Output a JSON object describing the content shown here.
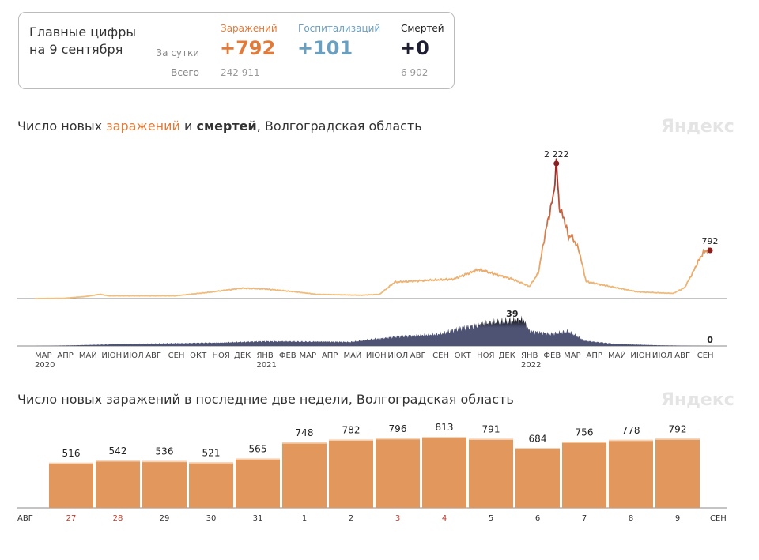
{
  "summary": {
    "title_line1": "Главные цифры",
    "title_line2": "на 9 сентября",
    "row_day_label": "За сутки",
    "row_total_label": "Всего",
    "columns": [
      {
        "label": "Заражений",
        "day": "+792",
        "total": "242 911",
        "color": "#e07b3c"
      },
      {
        "label": "Госпитализаций",
        "day": "+101",
        "total": "",
        "color": "#6a9fc0"
      },
      {
        "label": "Смертей",
        "day": "+0",
        "total": "6 902",
        "color": "#1f1f33"
      }
    ]
  },
  "logo": "Яндекс",
  "chart_data": [
    {
      "type": "line",
      "title_parts": [
        "Число новых ",
        "заражений",
        " и ",
        "смертей",
        ", Волгоградская область"
      ],
      "colors": {
        "infections_low": "#f0c080",
        "infections_high": "#9a1f1f",
        "deaths": "#4e5273",
        "deaths_peak": "#1a1a22"
      },
      "x_ticks": [
        "МАР",
        "АПР",
        "МАЙ",
        "ИЮН",
        "ИЮЛ",
        "АВГ",
        "СЕН",
        "ОКТ",
        "НОЯ",
        "ДЕК",
        "ЯНВ",
        "ФЕВ",
        "МАР",
        "АПР",
        "МАЙ",
        "ИЮН",
        "ИЮЛ",
        "АВГ",
        "СЕН",
        "ОКТ",
        "НОЯ",
        "ДЕК",
        "ЯНВ",
        "ФЕВ",
        "МАР",
        "АПР",
        "МАЙ",
        "ИЮН",
        "ИЮЛ",
        "АВГ",
        "СЕН"
      ],
      "year_ticks": [
        {
          "month_index": 0,
          "label": "2020"
        },
        {
          "month_index": 10,
          "label": "2021"
        },
        {
          "month_index": 22,
          "label": "2022"
        }
      ],
      "series": [
        {
          "key": "infections",
          "points": [
            [
              "2020-02-20",
              0
            ],
            [
              "2020-04-01",
              5
            ],
            [
              "2020-05-01",
              35
            ],
            [
              "2020-05-20",
              70
            ],
            [
              "2020-06-01",
              45
            ],
            [
              "2020-09-01",
              45
            ],
            [
              "2020-10-15",
              100
            ],
            [
              "2020-12-01",
              170
            ],
            [
              "2021-01-01",
              160
            ],
            [
              "2021-02-15",
              110
            ],
            [
              "2021-03-15",
              70
            ],
            [
              "2021-05-15",
              55
            ],
            [
              "2021-06-10",
              70
            ],
            [
              "2021-07-01",
              270
            ],
            [
              "2021-08-15",
              300
            ],
            [
              "2021-09-20",
              320
            ],
            [
              "2021-10-25",
              480
            ],
            [
              "2021-12-10",
              320
            ],
            [
              "2022-01-03",
              200
            ],
            [
              "2022-01-15",
              420
            ],
            [
              "2022-01-25",
              1100
            ],
            [
              "2022-02-05",
              1700
            ],
            [
              "2022-02-09",
              2222
            ],
            [
              "2022-02-13",
              1500
            ],
            [
              "2022-02-20",
              1300
            ],
            [
              "2022-02-26",
              1000
            ],
            [
              "2022-03-01",
              1050
            ],
            [
              "2022-03-12",
              800
            ],
            [
              "2022-03-22",
              280
            ],
            [
              "2022-04-15",
              220
            ],
            [
              "2022-06-01",
              110
            ],
            [
              "2022-07-20",
              85
            ],
            [
              "2022-08-05",
              180
            ],
            [
              "2022-08-15",
              400
            ],
            [
              "2022-08-25",
              640
            ],
            [
              "2022-09-01",
              780
            ],
            [
              "2022-09-09",
              792
            ]
          ],
          "annotations": [
            {
              "date": "2022-02-09",
              "value": 2222,
              "label": "2 222"
            },
            {
              "date": "2022-09-09",
              "value": 792,
              "label": "792"
            }
          ]
        },
        {
          "key": "deaths",
          "points": [
            [
              "2020-02-20",
              0
            ],
            [
              "2020-04-15",
              1
            ],
            [
              "2020-07-01",
              3
            ],
            [
              "2020-11-01",
              5
            ],
            [
              "2021-01-01",
              7
            ],
            [
              "2021-05-01",
              6
            ],
            [
              "2021-07-01",
              14
            ],
            [
              "2021-09-01",
              18
            ],
            [
              "2021-10-01",
              27
            ],
            [
              "2021-11-01",
              33
            ],
            [
              "2021-12-01",
              37
            ],
            [
              "2021-12-25",
              39
            ],
            [
              "2022-01-03",
              22
            ],
            [
              "2022-02-01",
              18
            ],
            [
              "2022-02-25",
              22
            ],
            [
              "2022-03-20",
              8
            ],
            [
              "2022-05-01",
              3
            ],
            [
              "2022-07-01",
              1
            ],
            [
              "2022-09-09",
              0
            ]
          ],
          "annotations": [
            {
              "date": "2021-12-10",
              "value": 39,
              "label": "39"
            },
            {
              "date": "2022-09-09",
              "value": 0,
              "label": "0"
            }
          ]
        }
      ]
    },
    {
      "type": "bar",
      "title": "Число новых заражений в последние две недели, Волгоградская область",
      "color": "#e2975c",
      "weekend_color": "#c0392b",
      "x_start_label": "АВГ",
      "x_end_label": "СЕН",
      "categories": [
        "27",
        "28",
        "29",
        "30",
        "31",
        "1",
        "2",
        "3",
        "4",
        "5",
        "6",
        "7",
        "8",
        "9"
      ],
      "weekend": [
        true,
        true,
        false,
        false,
        false,
        false,
        false,
        true,
        true,
        false,
        false,
        false,
        false,
        false
      ],
      "values": [
        516,
        542,
        536,
        521,
        565,
        748,
        782,
        796,
        813,
        791,
        684,
        756,
        778,
        792
      ],
      "labels": [
        "516",
        "542",
        "536",
        "521",
        "565",
        "748",
        "782",
        "796",
        "813",
        "791",
        "684",
        "756",
        "778",
        "792"
      ]
    }
  ]
}
